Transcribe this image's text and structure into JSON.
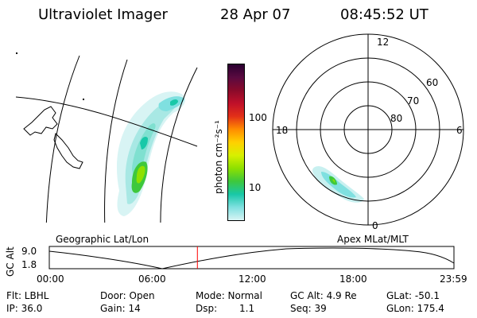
{
  "header": {
    "title": "Ultraviolet Imager",
    "date": "28 Apr 07",
    "time": "08:45:52 UT"
  },
  "colorbar": {
    "unit_label": "photon cm⁻²s⁻¹",
    "tick_100": "100",
    "tick_10": "10",
    "colors": [
      "#2a0030",
      "#5a0a40",
      "#8a0a2a",
      "#c0102a",
      "#e23018",
      "#ff8c00",
      "#ffd000",
      "#d8f000",
      "#8ee000",
      "#3ec83c",
      "#18c8a8",
      "#7fe0e0",
      "#d8f4f4"
    ]
  },
  "panels": {
    "geo_label": "Geographic Lat/Lon",
    "apex_label": "Apex MLat/MLT"
  },
  "polar": {
    "mlt_top": "12",
    "mlt_left": "18",
    "mlt_right": "6",
    "mlt_bottom": "0",
    "lat_60": "60",
    "lat_70": "70",
    "lat_80": "80"
  },
  "timeline": {
    "ylabel": "GC Alt",
    "ytick_top": "9.0",
    "ytick_bottom": "1.8",
    "xticks": [
      "00:00",
      "06:00",
      "12:00",
      "18:00",
      "23:59"
    ],
    "cursor_color": "#ff0000",
    "cursor_fraction": 0.366
  },
  "info": {
    "flt": "Flt: LBHL",
    "ip": "IP: 36.0",
    "door": "Door: Open",
    "gain": "Gain: 14",
    "mode": "Mode: Normal",
    "dsp_label": "Dsp:",
    "dsp_value": "1.1",
    "gcalt": "GC Alt: 4.9 Re",
    "seq": "Seq: 39",
    "glat": "GLat: -50.1",
    "glon": "GLon: 175.4"
  }
}
